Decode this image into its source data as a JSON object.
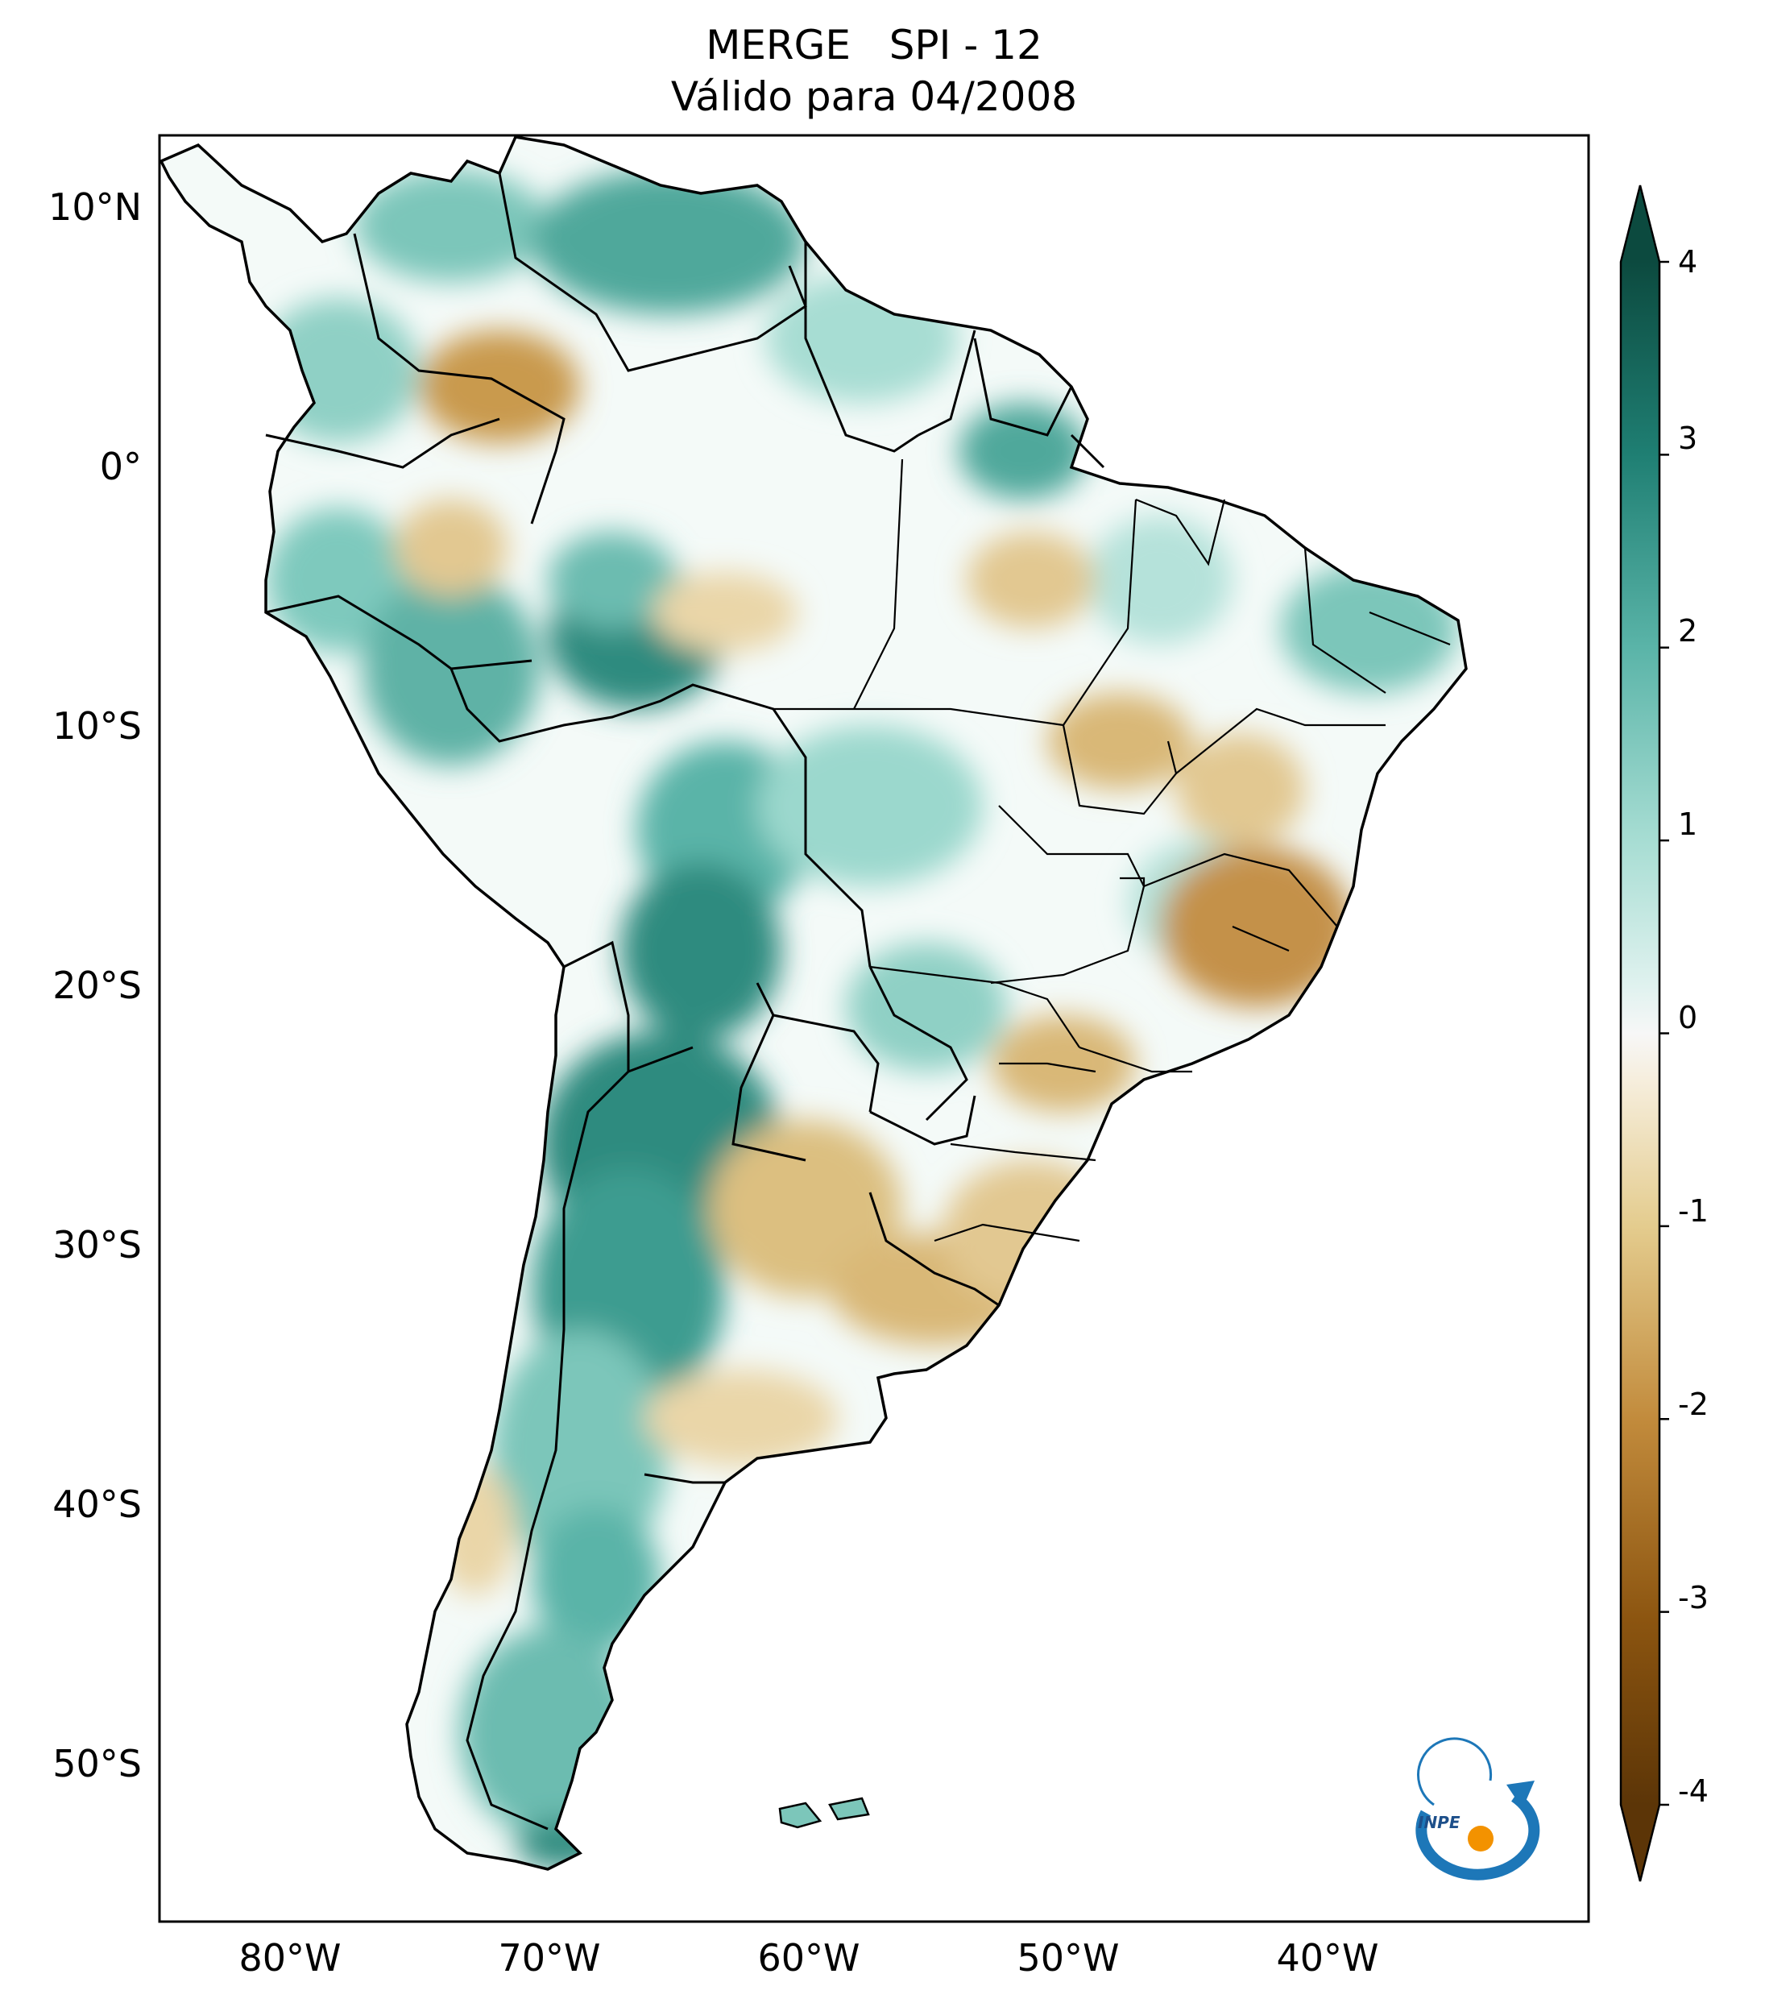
{
  "title": {
    "line1": "MERGE   SPI - 12",
    "line2": "Válido para 04/2008"
  },
  "axes": {
    "lat_labels": [
      "10°N",
      "0°",
      "10°S",
      "20°S",
      "30°S",
      "40°S",
      "50°S"
    ],
    "lon_labels": [
      "80°W",
      "70°W",
      "60°W",
      "50°W",
      "40°W"
    ]
  },
  "colorbar": {
    "tick_labels": [
      "4",
      "3",
      "2",
      "1",
      "0",
      "-1",
      "-2",
      "-3",
      "-4"
    ],
    "range": [
      -4,
      4
    ],
    "colormap": "BrBG",
    "color_high": "#0c4a3f",
    "color_mid": "#f7f7f7",
    "color_low": "#5c3507",
    "extend": "both"
  },
  "map": {
    "region": "South America",
    "extent_lon": [
      -85,
      -30
    ],
    "extent_lat": [
      -56,
      13
    ]
  },
  "logo": {
    "text": "INPE"
  }
}
